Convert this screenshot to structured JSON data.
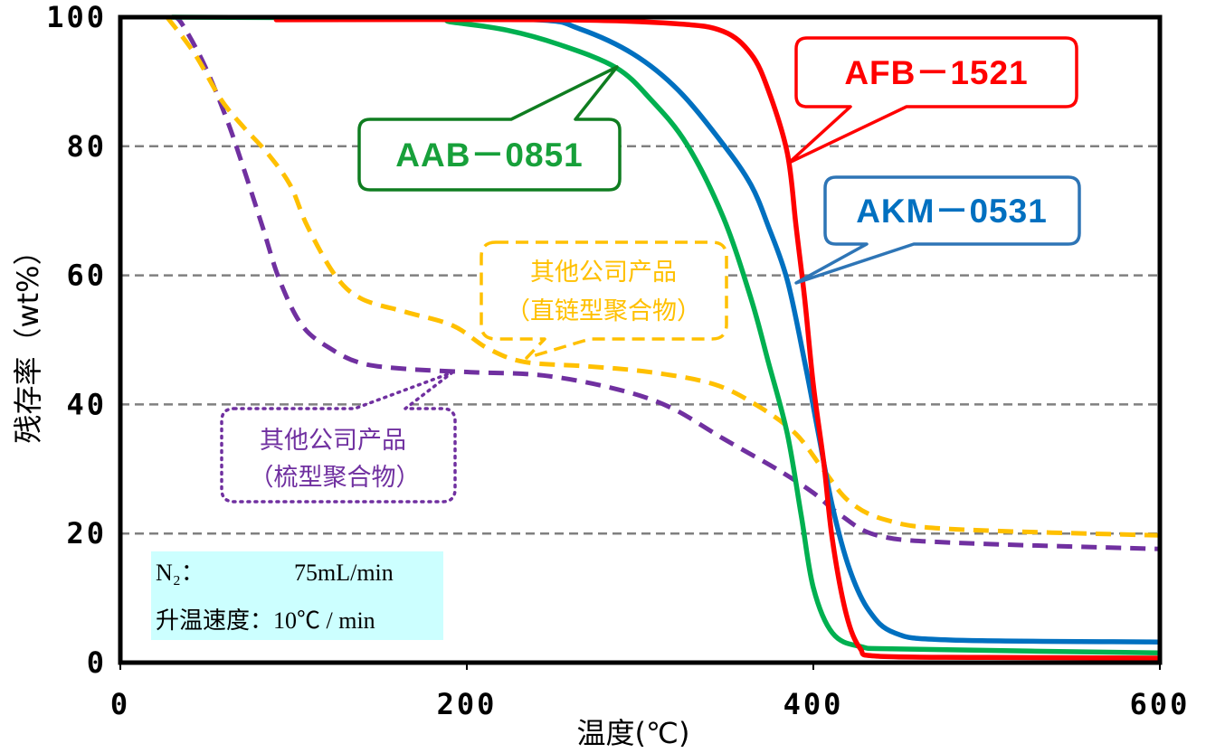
{
  "chart_data": {
    "type": "line",
    "xlabel": "温度(℃)",
    "ylabel": "残存率（wt%）",
    "xlim": [
      0,
      600
    ],
    "ylim": [
      0,
      100
    ],
    "xticks": [
      0,
      200,
      400,
      600
    ],
    "yticks": [
      0,
      20,
      40,
      60,
      80,
      100
    ],
    "grid": true,
    "series": [
      {
        "name": "AFB－1521",
        "color": "#ff0000",
        "dashed": false,
        "points": [
          [
            90,
            99.6
          ],
          [
            250,
            99.6
          ],
          [
            320,
            99.0
          ],
          [
            348,
            97.8
          ],
          [
            364,
            94.3
          ],
          [
            374,
            88.7
          ],
          [
            385,
            78.9
          ],
          [
            390,
            67.6
          ],
          [
            395,
            56.4
          ],
          [
            400,
            43.0
          ],
          [
            406,
            31.0
          ],
          [
            411,
            19.0
          ],
          [
            419,
            7.5
          ],
          [
            427,
            2.2
          ],
          [
            437,
            1.0
          ],
          [
            500,
            0.8
          ],
          [
            600,
            0.7
          ]
        ]
      },
      {
        "name": "AKM－0531",
        "color": "#0070c0",
        "dashed": false,
        "points": [
          [
            150,
            99.8
          ],
          [
            240,
            99.6
          ],
          [
            265,
            98.2
          ],
          [
            296,
            94.3
          ],
          [
            322,
            88.7
          ],
          [
            348,
            80.3
          ],
          [
            364,
            74.0
          ],
          [
            374,
            67.6
          ],
          [
            385,
            59.2
          ],
          [
            395,
            46.6
          ],
          [
            403,
            35.4
          ],
          [
            411,
            24.2
          ],
          [
            421,
            14.4
          ],
          [
            432,
            8.1
          ],
          [
            447,
            4.6
          ],
          [
            479,
            3.5
          ],
          [
            600,
            3.2
          ]
        ]
      },
      {
        "name": "AAB－0851",
        "color": "#00b050",
        "dashed": false,
        "points": [
          [
            30,
            100
          ],
          [
            170,
            99.8
          ],
          [
            192,
            99.2
          ],
          [
            223,
            98.0
          ],
          [
            254,
            95.7
          ],
          [
            286,
            92.2
          ],
          [
            306,
            87.3
          ],
          [
            327,
            80.3
          ],
          [
            348,
            69.0
          ],
          [
            364,
            56.4
          ],
          [
            374,
            46.6
          ],
          [
            385,
            35.4
          ],
          [
            393,
            22.8
          ],
          [
            400,
            11.6
          ],
          [
            411,
            4.6
          ],
          [
            427,
            2.5
          ],
          [
            453,
            2.1
          ],
          [
            600,
            1.5
          ]
        ]
      },
      {
        "label_lines": [
          "其他公司产品",
          "（直链型聚合物）"
        ],
        "color": "#ffc000",
        "dashed": true,
        "points": [
          [
            27,
            100
          ],
          [
            43,
            94.3
          ],
          [
            58,
            87.3
          ],
          [
            71,
            83.0
          ],
          [
            85,
            78.9
          ],
          [
            98,
            74.0
          ],
          [
            108,
            67.6
          ],
          [
            124,
            60.0
          ],
          [
            139,
            56.4
          ],
          [
            165,
            54.3
          ],
          [
            192,
            52.2
          ],
          [
            212,
            48.7
          ],
          [
            233,
            46.6
          ],
          [
            270,
            45.9
          ],
          [
            306,
            45.0
          ],
          [
            343,
            43.1
          ],
          [
            369,
            39.6
          ],
          [
            390,
            35.4
          ],
          [
            406,
            29.8
          ],
          [
            421,
            24.9
          ],
          [
            442,
            22.1
          ],
          [
            479,
            20.7
          ],
          [
            600,
            19.7
          ]
        ]
      },
      {
        "label_lines": [
          "其他公司产品",
          "（梳型聚合物）"
        ],
        "color": "#7030a0",
        "dashed": true,
        "points": [
          [
            30,
            100
          ],
          [
            35,
            99.2
          ],
          [
            48,
            92.9
          ],
          [
            61,
            84.5
          ],
          [
            71,
            76.7
          ],
          [
            82,
            67.6
          ],
          [
            92,
            59.2
          ],
          [
            105,
            52.2
          ],
          [
            121,
            48.7
          ],
          [
            139,
            46.4
          ],
          [
            165,
            45.5
          ],
          [
            202,
            45.0
          ],
          [
            244,
            44.5
          ],
          [
            286,
            42.4
          ],
          [
            317,
            39.6
          ],
          [
            348,
            34.7
          ],
          [
            380,
            29.8
          ],
          [
            400,
            26.3
          ],
          [
            416,
            22.8
          ],
          [
            437,
            19.7
          ],
          [
            479,
            18.6
          ],
          [
            600,
            17.6
          ]
        ]
      }
    ]
  },
  "conditions": {
    "gas_label": "N₂：",
    "gas_flow": "75mL/min",
    "heating_rate": "升温速度：10℃ / min"
  }
}
